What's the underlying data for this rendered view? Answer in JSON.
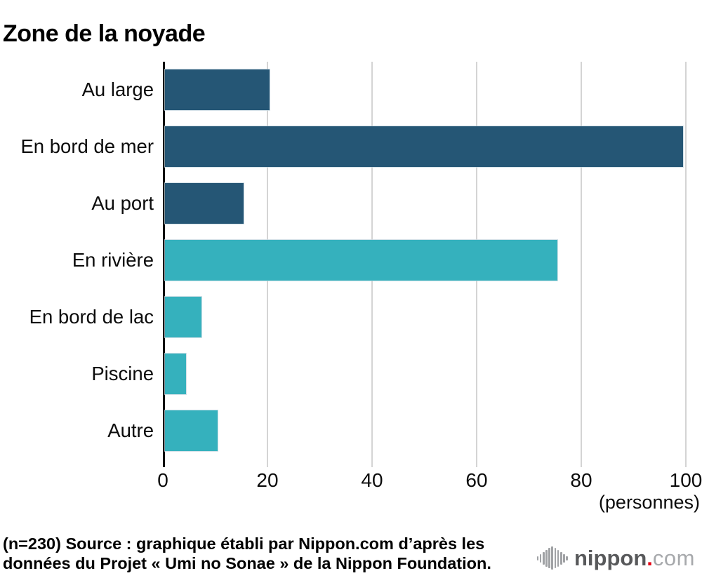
{
  "title": "Zone de la noyade",
  "chart_data": {
    "type": "bar",
    "orientation": "horizontal",
    "title": "Zone de la noyade",
    "categories": [
      "Au large",
      "En bord de mer",
      "Au port",
      "En rivière",
      "En bord de lac",
      "Piscine",
      "Autre"
    ],
    "values": [
      20,
      99,
      15,
      75,
      7,
      4,
      10
    ],
    "colors": [
      "#255675",
      "#255675",
      "#255675",
      "#35b1bd",
      "#35b1bd",
      "#35b1bd",
      "#35b1bd"
    ],
    "palette": {
      "sea": "#255675",
      "freshwater_other": "#35b1bd"
    },
    "xlim": [
      0,
      100
    ],
    "xticks": [
      "0",
      "20",
      "40",
      "60",
      "80",
      "100"
    ],
    "unit_label": "(personnes)",
    "grid": "vertical",
    "grid_color": "#d4d4d4",
    "axis_color": "#000000",
    "n_total": 230
  },
  "source": {
    "line1": "(n=230) Source : graphique établi par Nippon.com d’après les",
    "line2": "données du Projet « Umi no Sonae » de la Nippon Foundation."
  },
  "logo": {
    "icon": "soundwave-icon",
    "name": "nippon",
    "dot": ".",
    "tld": "com",
    "name_color": "#58595b",
    "dot_color": "#e60012",
    "tld_color": "#a7a9ac"
  }
}
